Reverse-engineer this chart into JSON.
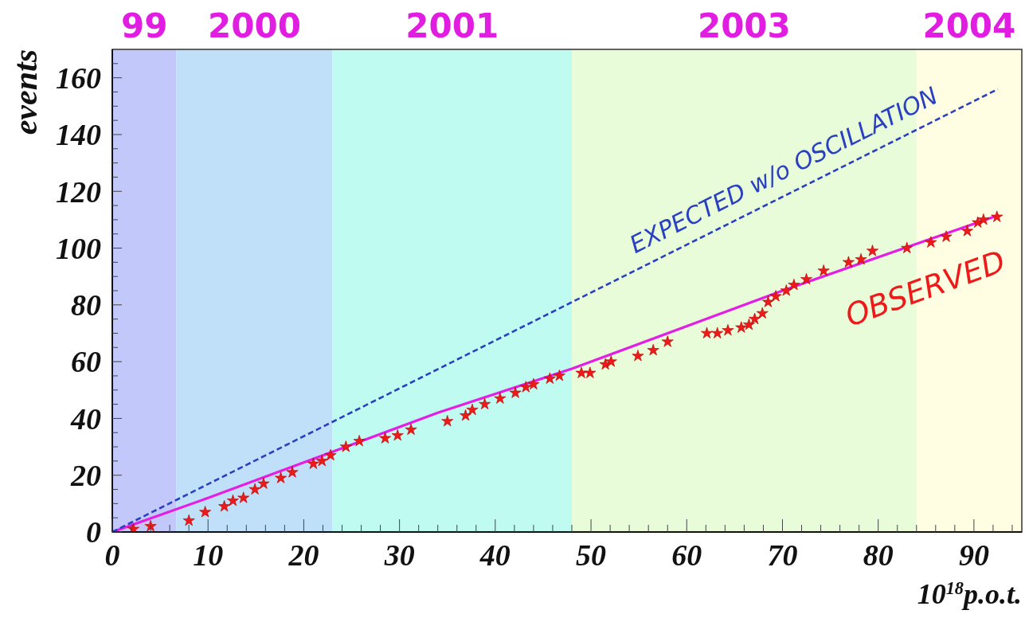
{
  "chart_data": {
    "type": "scatter",
    "xlabel": "10$^{18}$p.o.t.",
    "ylabel": "events",
    "xlim": [
      0,
      95
    ],
    "ylim": [
      0,
      170
    ],
    "xticks": [
      0,
      {
        "value": 2,
        "label": null
      },
      {
        "value": 4,
        "label": null
      },
      {
        "value": 6,
        "label": null
      },
      {
        "value": 8,
        "label": null
      },
      10,
      {
        "value": 12,
        "label": null
      },
      {
        "value": 14,
        "label": null
      },
      {
        "value": 16,
        "label": null
      },
      {
        "value": 18,
        "label": null
      },
      20,
      {
        "value": 22,
        "label": null
      },
      {
        "value": 24,
        "label": null
      },
      {
        "value": 26,
        "label": null
      },
      {
        "value": 28,
        "label": null
      },
      30,
      {
        "value": 32,
        "label": null
      },
      {
        "value": 34,
        "label": null
      },
      {
        "value": 36,
        "label": null
      },
      {
        "value": 38,
        "label": null
      },
      40,
      {
        "value": 42,
        "label": null
      },
      {
        "value": 44,
        "label": null
      },
      {
        "value": 46,
        "label": null
      },
      {
        "value": 48,
        "label": null
      },
      50,
      {
        "value": 52,
        "label": null
      },
      {
        "value": 54,
        "label": null
      },
      {
        "value": 56,
        "label": null
      },
      {
        "value": 58,
        "label": null
      },
      60,
      {
        "value": 62,
        "label": null
      },
      {
        "value": 64,
        "label": null
      },
      {
        "value": 66,
        "label": null
      },
      {
        "value": 68,
        "label": null
      },
      70,
      {
        "value": 72,
        "label": null
      },
      {
        "value": 74,
        "label": null
      },
      {
        "value": 76,
        "label": null
      },
      {
        "value": 78,
        "label": null
      },
      80,
      {
        "value": 82,
        "label": null
      },
      {
        "value": 84,
        "label": null
      },
      {
        "value": 86,
        "label": null
      },
      {
        "value": 88,
        "label": null
      },
      90,
      {
        "value": 92,
        "label": null
      },
      {
        "value": 94,
        "label": null
      }
    ],
    "yticks": [
      0,
      {
        "value": 5,
        "label": null
      },
      {
        "value": 10,
        "label": null
      },
      {
        "value": 15,
        "label": null
      },
      20,
      {
        "value": 25,
        "label": null
      },
      {
        "value": 30,
        "label": null
      },
      {
        "value": 35,
        "label": null
      },
      40,
      {
        "value": 45,
        "label": null
      },
      {
        "value": 50,
        "label": null
      },
      {
        "value": 55,
        "label": null
      },
      60,
      {
        "value": 65,
        "label": null
      },
      {
        "value": 70,
        "label": null
      },
      {
        "value": 75,
        "label": null
      },
      80,
      {
        "value": 85,
        "label": null
      },
      {
        "value": 90,
        "label": null
      },
      {
        "value": 95,
        "label": null
      },
      100,
      {
        "value": 105,
        "label": null
      },
      {
        "value": 110,
        "label": null
      },
      {
        "value": 115,
        "label": null
      },
      120,
      {
        "value": 125,
        "label": null
      },
      {
        "value": 130,
        "label": null
      },
      {
        "value": 135,
        "label": null
      },
      140,
      {
        "value": 145,
        "label": null
      },
      {
        "value": 150,
        "label": null
      },
      {
        "value": 155,
        "label": null
      },
      160,
      {
        "value": 165,
        "label": null
      }
    ],
    "bands": [
      {
        "axis": "x",
        "from": 0,
        "to": 6.7,
        "label": "99",
        "color": "#c2c8fa"
      },
      {
        "axis": "x",
        "from": 6.7,
        "to": 23,
        "label": "2000",
        "color": "#c0e0f9"
      },
      {
        "axis": "x",
        "from": 23,
        "to": 48,
        "label": "2001",
        "color": "#c0fbf1"
      },
      {
        "axis": "x",
        "from": 48,
        "to": 84,
        "label": "2003",
        "color": "#e8fcda"
      },
      {
        "axis": "x",
        "from": 84,
        "to": 95,
        "label": "2004",
        "color": "#fffde2"
      }
    ],
    "series": [
      {
        "type": "line",
        "color": "#e41ee4",
        "line_style": "solid",
        "x": [
          0,
          10,
          34,
          48,
          70,
          92.5
        ],
        "values": [
          0,
          12,
          42,
          57.5,
          85,
          111.5
        ]
      },
      {
        "type": "line",
        "name": "EXPECTED w/o OSCILLATION",
        "color": "#2a3fc2",
        "line_style": "dashed",
        "x": [
          0,
          92.5
        ],
        "values": [
          0,
          156
        ]
      },
      {
        "name": "OBSERVED",
        "color": "#ee1a1a",
        "marker": "star",
        "x": [
          2.2,
          4.0,
          8.0,
          9.7,
          11.7,
          12.6,
          13.7,
          14.9,
          15.8,
          17.6,
          18.8,
          21.0,
          21.9,
          22.8,
          24.4,
          25.8,
          28.5,
          29.8,
          31.2,
          35.0,
          36.9,
          37.6,
          38.9,
          40.5,
          42.1,
          43.2,
          44.0,
          45.7,
          46.7,
          49.0,
          49.9,
          51.5,
          52.1,
          54.9,
          56.5,
          58.0,
          62.1,
          63.2,
          64.3,
          65.7,
          66.5,
          67.1,
          67.9,
          68.5,
          69.3,
          70.4,
          71.2,
          72.5,
          74.3,
          76.9,
          78.2,
          79.4,
          83.0,
          85.5,
          87.1,
          89.3,
          90.4,
          91.0,
          92.4
        ],
        "values": [
          1,
          2,
          4,
          7,
          9,
          11,
          12,
          15,
          17,
          19,
          21,
          24,
          25,
          27,
          30,
          32,
          33,
          34,
          36,
          39,
          41,
          43,
          45,
          47,
          49,
          51,
          52,
          54,
          55,
          56,
          56,
          59,
          60,
          62,
          64,
          67,
          70,
          70,
          71,
          72,
          73,
          75,
          77,
          81,
          83,
          85,
          87,
          89,
          92,
          95,
          96,
          99,
          100,
          102,
          104,
          106,
          109,
          110,
          111
        ]
      }
    ]
  }
}
